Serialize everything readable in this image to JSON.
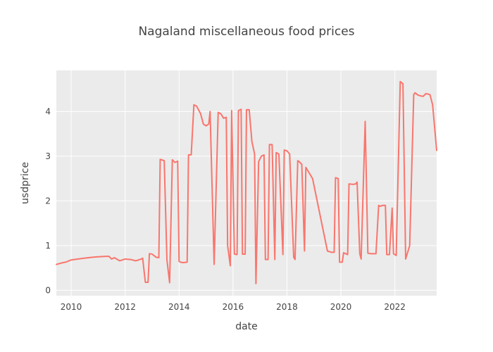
{
  "chart_data": {
    "type": "line",
    "title": "Nagaland miscellaneous food prices",
    "xlabel": "date",
    "ylabel": "usdprice",
    "xlim": [
      2009.45,
      2023.55
    ],
    "ylim": [
      -0.12,
      4.92
    ],
    "x_ticks": [
      2010,
      2012,
      2014,
      2016,
      2018,
      2020,
      2022
    ],
    "y_ticks": [
      0,
      1,
      2,
      3,
      4
    ],
    "x_tick_labels": [
      "2010",
      "2012",
      "2014",
      "2016",
      "2018",
      "2020",
      "2022"
    ],
    "y_tick_labels": [
      "0",
      "1",
      "2",
      "3",
      "4"
    ],
    "grid": true,
    "background": "#EBEBEB",
    "series": [
      {
        "color": "#F8766D",
        "x": [
          2009.45,
          2009.7,
          2009.8,
          2010.0,
          2010.5,
          2010.8,
          2011.0,
          2011.3,
          2011.4,
          2011.5,
          2011.6,
          2011.8,
          2012.0,
          2012.2,
          2012.4,
          2012.6,
          2012.65,
          2012.75,
          2012.85,
          2012.9,
          2013.0,
          2013.15,
          2013.25,
          2013.3,
          2013.45,
          2013.55,
          2013.65,
          2013.75,
          2013.85,
          2013.95,
          2014.0,
          2014.05,
          2014.15,
          2014.3,
          2014.35,
          2014.45,
          2014.55,
          2014.65,
          2014.8,
          2014.9,
          2015.0,
          2015.1,
          2015.15,
          2015.3,
          2015.45,
          2015.55,
          2015.65,
          2015.75,
          2015.8,
          2015.9,
          2015.95,
          2016.05,
          2016.15,
          2016.2,
          2016.3,
          2016.35,
          2016.45,
          2016.5,
          2016.6,
          2016.7,
          2016.8,
          2016.85,
          2016.95,
          2017.05,
          2017.15,
          2017.2,
          2017.3,
          2017.35,
          2017.45,
          2017.55,
          2017.6,
          2017.7,
          2017.85,
          2017.9,
          2018.0,
          2018.1,
          2018.25,
          2018.3,
          2018.4,
          2018.45,
          2018.55,
          2018.65,
          2018.7,
          2018.8,
          2018.95,
          2019.5,
          2019.65,
          2019.75,
          2019.8,
          2019.9,
          2019.95,
          2020.05,
          2020.1,
          2020.25,
          2020.3,
          2020.45,
          2020.55,
          2020.6,
          2020.7,
          2020.75,
          2020.9,
          2021.0,
          2021.1,
          2021.3,
          2021.4,
          2021.45,
          2021.55,
          2021.65,
          2021.7,
          2021.8,
          2021.9,
          2021.95,
          2022.05,
          2022.2,
          2022.3,
          2022.4,
          2022.45,
          2022.55,
          2022.7,
          2022.75,
          2022.85,
          2022.95,
          2023.05,
          2023.15,
          2023.3,
          2023.4,
          2023.55
        ],
        "y": [
          0.58,
          0.62,
          0.63,
          0.68,
          0.72,
          0.74,
          0.75,
          0.76,
          0.76,
          0.7,
          0.73,
          0.66,
          0.7,
          0.69,
          0.66,
          0.7,
          0.72,
          0.18,
          0.18,
          0.82,
          0.81,
          0.74,
          0.73,
          2.93,
          2.9,
          0.68,
          0.17,
          2.92,
          2.86,
          2.89,
          0.65,
          0.63,
          0.62,
          0.63,
          3.03,
          3.03,
          4.15,
          4.12,
          3.95,
          3.72,
          3.68,
          3.72,
          4.0,
          0.58,
          3.98,
          3.95,
          3.85,
          3.87,
          1.0,
          0.55,
          4.02,
          0.81,
          0.8,
          4.02,
          4.05,
          0.81,
          0.81,
          4.04,
          4.04,
          3.33,
          3.05,
          0.15,
          2.88,
          3.0,
          3.03,
          0.69,
          0.69,
          3.26,
          3.26,
          0.69,
          3.08,
          3.05,
          0.8,
          3.14,
          3.12,
          3.05,
          0.74,
          0.69,
          2.9,
          2.88,
          2.82,
          0.88,
          2.75,
          2.65,
          2.5,
          0.88,
          0.85,
          0.85,
          2.52,
          2.5,
          0.63,
          0.63,
          0.84,
          0.8,
          2.38,
          2.37,
          2.38,
          2.42,
          0.82,
          0.7,
          3.78,
          0.83,
          0.82,
          0.82,
          1.9,
          1.88,
          1.9,
          1.9,
          0.8,
          0.8,
          1.84,
          0.82,
          0.78,
          4.67,
          4.62,
          0.7,
          0.8,
          1.0,
          4.38,
          4.42,
          4.37,
          4.35,
          4.34,
          4.4,
          4.38,
          4.15,
          3.13
        ]
      }
    ]
  }
}
